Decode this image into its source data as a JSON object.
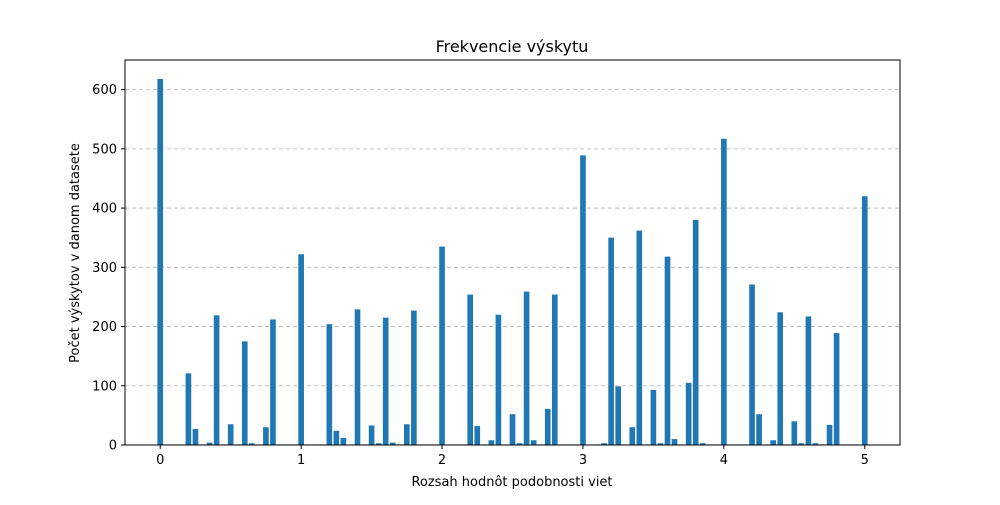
{
  "chart_data": {
    "type": "bar",
    "title": "Frekvencie výskytu",
    "xlabel": "Rozsah hodnôt podobnosti viet",
    "ylabel": "Počet výskytov v danom datasete",
    "xlim": [
      -0.25,
      5.25
    ],
    "ylim": [
      0,
      650
    ],
    "x_ticks": [
      0,
      1,
      2,
      3,
      4,
      5
    ],
    "y_ticks": [
      0,
      100,
      200,
      300,
      400,
      500,
      600
    ],
    "grid": "y-dashed",
    "color": "#1f77b4",
    "x": [
      0.0,
      0.05,
      0.1,
      0.15,
      0.2,
      0.25,
      0.3,
      0.35,
      0.4,
      0.45,
      0.5,
      0.55,
      0.6,
      0.65,
      0.7,
      0.75,
      0.8,
      0.85,
      0.9,
      0.95,
      1.0,
      1.05,
      1.1,
      1.15,
      1.2,
      1.25,
      1.3,
      1.35,
      1.4,
      1.45,
      1.5,
      1.55,
      1.6,
      1.65,
      1.7,
      1.75,
      1.8,
      1.85,
      1.9,
      1.95,
      2.0,
      2.05,
      2.1,
      2.15,
      2.2,
      2.25,
      2.3,
      2.35,
      2.4,
      2.45,
      2.5,
      2.55,
      2.6,
      2.65,
      2.7,
      2.75,
      2.8,
      2.85,
      2.9,
      2.95,
      3.0,
      3.05,
      3.1,
      3.15,
      3.2,
      3.25,
      3.3,
      3.35,
      3.4,
      3.45,
      3.5,
      3.55,
      3.6,
      3.65,
      3.7,
      3.75,
      3.8,
      3.85,
      3.9,
      3.95,
      4.0,
      4.05,
      4.1,
      4.15,
      4.2,
      4.25,
      4.3,
      4.35,
      4.4,
      4.45,
      4.5,
      4.55,
      4.6,
      4.65,
      4.7,
      4.75,
      4.8,
      4.85,
      4.9,
      4.95,
      5.0
    ],
    "values": [
      618,
      1,
      1,
      1,
      121,
      27,
      1,
      4,
      219,
      1,
      35,
      1,
      175,
      3,
      1,
      30,
      212,
      1,
      1,
      1,
      322,
      1,
      1,
      1,
      204,
      24,
      12,
      1,
      229,
      1,
      33,
      3,
      215,
      4,
      1,
      35,
      227,
      1,
      1,
      1,
      335,
      1,
      1,
      1,
      254,
      32,
      1,
      8,
      220,
      1,
      52,
      3,
      259,
      8,
      1,
      61,
      254,
      1,
      1,
      1,
      489,
      1,
      1,
      3,
      350,
      99,
      1,
      30,
      362,
      1,
      93,
      3,
      318,
      10,
      1,
      105,
      380,
      3,
      1,
      1,
      517,
      1,
      1,
      1,
      271,
      52,
      1,
      8,
      224,
      1,
      40,
      3,
      217,
      3,
      1,
      34,
      189,
      1,
      1,
      1,
      420
    ]
  }
}
